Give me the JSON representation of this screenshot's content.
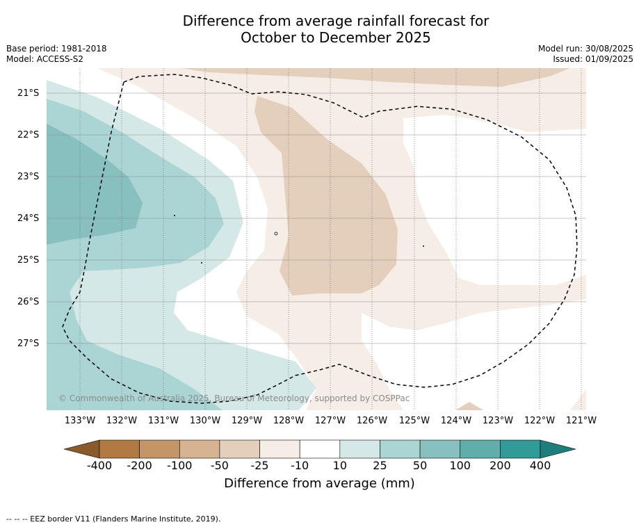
{
  "title": {
    "line1": "Difference from average rainfall forecast for",
    "line2": "October to December 2025"
  },
  "meta_left": {
    "base_period": "Base period: 1981-2018",
    "model": "Model: ACCESS-S2"
  },
  "meta_right": {
    "model_run": "Model run: 30/08/2025",
    "issued": "Issued: 01/09/2025"
  },
  "map": {
    "lat_labels": [
      "21°S",
      "22°S",
      "23°S",
      "24°S",
      "25°S",
      "26°S",
      "27°S"
    ],
    "lon_labels": [
      "133°W",
      "132°W",
      "131°W",
      "130°W",
      "129°W",
      "128°W",
      "127°W",
      "126°W",
      "125°W",
      "124°W",
      "123°W",
      "122°W",
      "121°W"
    ],
    "copyright": "© Commonwealth of Australia 2025, Bureau of Meteorology, supported by COSPPac",
    "eez_border_style": "dashed black"
  },
  "colorbar": {
    "tick_labels": [
      "-400",
      "-200",
      "-100",
      "-50",
      "-25",
      "-10",
      "10",
      "25",
      "50",
      "100",
      "200",
      "400"
    ],
    "colors": [
      "#8a5a2b",
      "#b07a42",
      "#c49567",
      "#d6b391",
      "#e4cfbc",
      "#f5ede6",
      "#ffffff",
      "#d4e9e7",
      "#abd5d4",
      "#87c0bf",
      "#5faeac",
      "#309b97",
      "#1f7e7b"
    ],
    "title": "Difference from average (mm)"
  },
  "footer": "--  --  -- EEZ border V11 (Flanders Marine Institute, 2019)."
}
